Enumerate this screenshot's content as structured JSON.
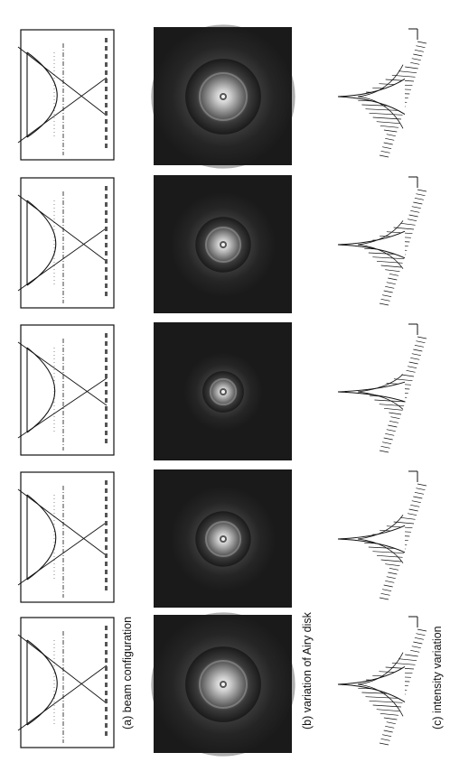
{
  "figure": {
    "panels": [
      {
        "id": "a",
        "label": "(a) beam configuration"
      },
      {
        "id": "b",
        "label": "(b) variation of Airy disk"
      },
      {
        "id": "c",
        "label": "(c) intensity variation"
      }
    ],
    "rows": [
      {
        "order": 1,
        "ring_size": 0.88,
        "lens_depth": 0.55,
        "focus_spread": 0.7,
        "peak_width": 0.85
      },
      {
        "order": 2,
        "ring_size": 0.55,
        "lens_depth": 0.45,
        "focus_spread": 0.45,
        "peak_width": 0.55
      },
      {
        "order": 3,
        "ring_size": 0.32,
        "lens_depth": 0.38,
        "focus_spread": 0.1,
        "peak_width": 0.3
      },
      {
        "order": 4,
        "ring_size": 0.55,
        "lens_depth": 0.45,
        "focus_spread": 0.45,
        "peak_width": 0.55
      },
      {
        "order": 5,
        "ring_size": 0.88,
        "lens_depth": 0.55,
        "focus_spread": 0.7,
        "peak_width": 0.85
      }
    ],
    "colors": {
      "line": "#111111",
      "spot_background": "#1a1a1a",
      "spot_core": "#f2f2f2",
      "spot_halo": "#8c8c8c"
    }
  }
}
